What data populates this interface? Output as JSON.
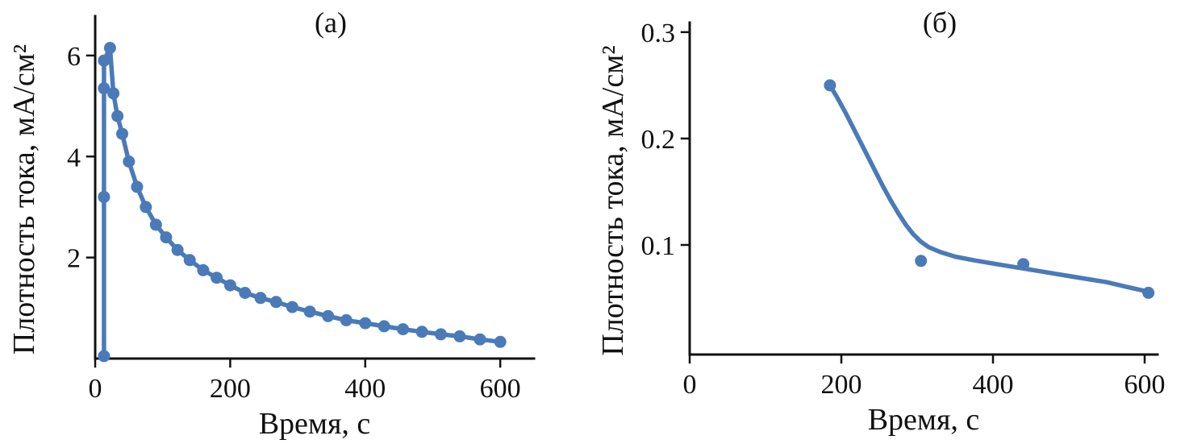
{
  "figure": {
    "accent_color": "#4a7ab8",
    "axis_color": "#111111",
    "background_color": "#ffffff",
    "charts": [
      {
        "id": "a",
        "type": "line",
        "title": "(а)",
        "xlabel": "Время, с",
        "ylabel": "Плотность тока, мА/см²",
        "xlim": [
          0,
          650
        ],
        "ylim": [
          0,
          6.78
        ],
        "xticks": [
          0,
          200,
          400,
          600
        ],
        "yticks": [
          2,
          4,
          6
        ],
        "grid": false,
        "legend": "none",
        "series": [
          {
            "name": "current-density-decay",
            "marker": "circle",
            "line": true,
            "x": [
              13,
              13,
              13,
              13,
              22,
              27,
              33,
              40,
              50,
              62,
              75,
              90,
              105,
              122,
              140,
              160,
              180,
              200,
              222,
              245,
              268,
              292,
              318,
              345,
              372,
              400,
              428,
              456,
              484,
              512,
              540,
              570,
              600
            ],
            "y": [
              0.05,
              3.2,
              5.35,
              5.9,
              6.15,
              5.25,
              4.8,
              4.45,
              3.9,
              3.4,
              3.0,
              2.65,
              2.4,
              2.15,
              1.95,
              1.75,
              1.6,
              1.45,
              1.3,
              1.2,
              1.12,
              1.02,
              0.93,
              0.84,
              0.76,
              0.7,
              0.64,
              0.58,
              0.53,
              0.48,
              0.44,
              0.38,
              0.33
            ]
          }
        ]
      },
      {
        "id": "b",
        "type": "line",
        "title": "(б)",
        "xlabel": "Время, с",
        "ylabel": "Плотность тока, мА/см²",
        "xlim": [
          0,
          617
        ],
        "ylim": [
          -0.003,
          0.309
        ],
        "xticks": [
          0,
          200,
          400,
          600
        ],
        "yticks": [
          0.1,
          0.2,
          0.3
        ],
        "grid": false,
        "legend": "none",
        "series": [
          {
            "name": "fit-line",
            "marker": "none",
            "line": true,
            "x": [
              185,
              195,
              205,
              215,
              225,
              235,
              245,
              255,
              265,
              275,
              285,
              295,
              305,
              315,
              330,
              350,
              375,
              400,
              430,
              460,
              490,
              520,
              550,
              580,
              605
            ],
            "y": [
              0.25,
              0.238,
              0.225,
              0.211,
              0.197,
              0.183,
              0.169,
              0.155,
              0.142,
              0.13,
              0.119,
              0.11,
              0.103,
              0.098,
              0.0935,
              0.089,
              0.0855,
              0.0825,
              0.079,
              0.0755,
              0.072,
              0.0685,
              0.065,
              0.06,
              0.056
            ]
          },
          {
            "name": "measured-points",
            "marker": "circle",
            "line": false,
            "x": [
              185,
              305,
              440,
              605
            ],
            "y": [
              0.25,
              0.085,
              0.082,
              0.055
            ]
          }
        ]
      }
    ]
  }
}
